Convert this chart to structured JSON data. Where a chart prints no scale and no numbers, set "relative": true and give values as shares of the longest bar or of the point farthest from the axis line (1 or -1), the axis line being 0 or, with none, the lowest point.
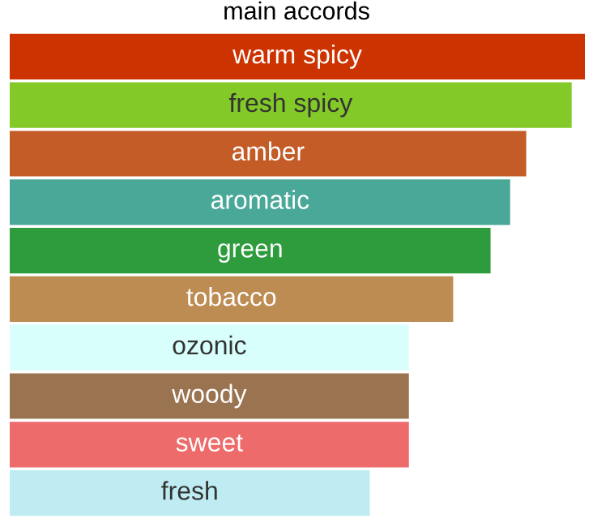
{
  "chart_data": {
    "type": "bar",
    "orientation": "horizontal",
    "relative": true,
    "title": "main accords",
    "categories": [
      "warm spicy",
      "fresh spicy",
      "amber",
      "aromatic",
      "green",
      "tobacco",
      "ozonic",
      "woody",
      "sweet",
      "fresh"
    ],
    "values": [
      1,
      0.977,
      0.898,
      0.87,
      0.836,
      0.771,
      0.694,
      0.694,
      0.694,
      0.626
    ],
    "colors": [
      "#cc3300",
      "#83c928",
      "#c45c27",
      "#4aa899",
      "#2e9c3d",
      "#bd8c52",
      "#d8fffb",
      "#9a7350",
      "#ee6b6b",
      "#bfecf2"
    ]
  }
}
